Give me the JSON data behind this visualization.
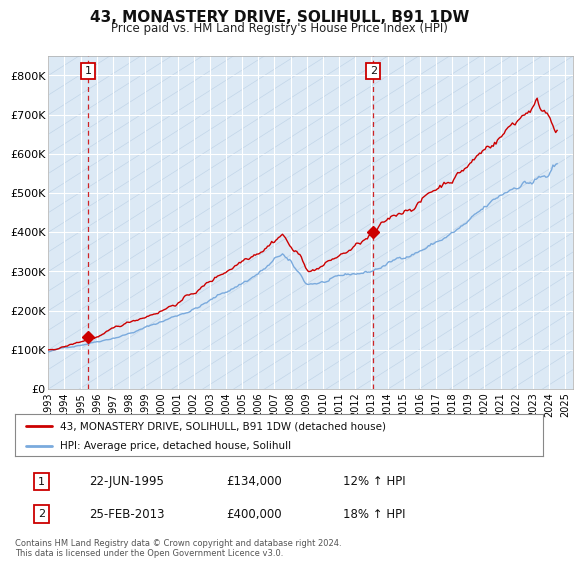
{
  "title": "43, MONASTERY DRIVE, SOLIHULL, B91 1DW",
  "subtitle": "Price paid vs. HM Land Registry's House Price Index (HPI)",
  "ylim": [
    0,
    850000
  ],
  "xlim_start": 1993.0,
  "xlim_end": 2025.5,
  "yticks": [
    0,
    100000,
    200000,
    300000,
    400000,
    500000,
    600000,
    700000,
    800000
  ],
  "ytick_labels": [
    "£0",
    "£100K",
    "£200K",
    "£300K",
    "£400K",
    "£500K",
    "£600K",
    "£700K",
    "£800K"
  ],
  "background_color": "#ffffff",
  "plot_bg_color": "#dce9f5",
  "grid_color": "#ffffff",
  "hpi_line_color": "#7aaadd",
  "price_line_color": "#cc0000",
  "marker_color": "#cc0000",
  "title_fontsize": 11,
  "subtitle_fontsize": 9,
  "legend_label_red": "43, MONASTERY DRIVE, SOLIHULL, B91 1DW (detached house)",
  "legend_label_blue": "HPI: Average price, detached house, Solihull",
  "annotation1_num": "1",
  "annotation1_date": "22-JUN-1995",
  "annotation1_price": "£134,000",
  "annotation1_hpi": "12% ↑ HPI",
  "annotation2_num": "2",
  "annotation2_date": "25-FEB-2013",
  "annotation2_price": "£400,000",
  "annotation2_hpi": "18% ↑ HPI",
  "footer": "Contains HM Land Registry data © Crown copyright and database right 2024.\nThis data is licensed under the Open Government Licence v3.0.",
  "sale1_x": 1995.47,
  "sale1_y": 134000,
  "sale2_x": 2013.12,
  "sale2_y": 400000,
  "xtick_years": [
    1993,
    1994,
    1995,
    1996,
    1997,
    1998,
    1999,
    2000,
    2001,
    2002,
    2003,
    2004,
    2005,
    2006,
    2007,
    2008,
    2009,
    2010,
    2011,
    2012,
    2013,
    2014,
    2015,
    2016,
    2017,
    2018,
    2019,
    2020,
    2021,
    2022,
    2023,
    2024,
    2025
  ]
}
